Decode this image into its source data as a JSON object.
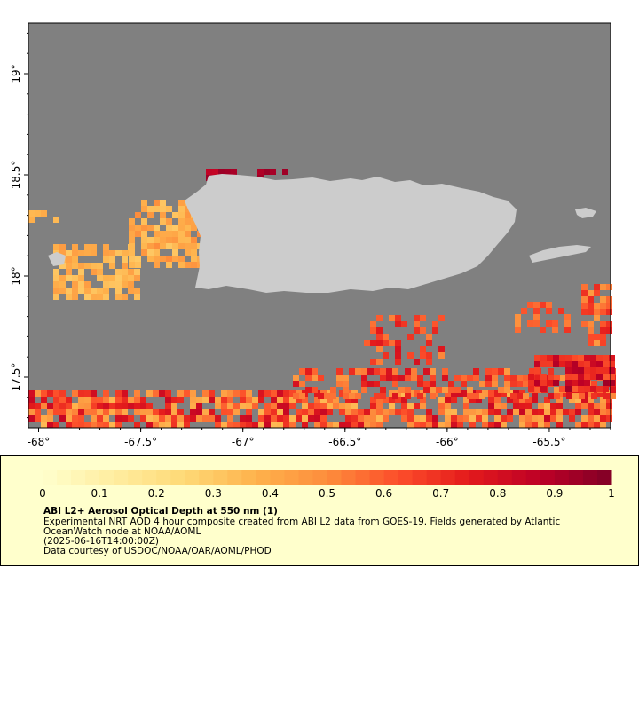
{
  "map": {
    "x_ticks": [
      "-68°",
      "-67.5°",
      "-67°",
      "-66.5°",
      "-66°",
      "-65.5°"
    ],
    "x_tick_values": [
      -68,
      -67.5,
      -67,
      -66.5,
      -66,
      -65.5
    ],
    "y_ticks": [
      "19°",
      "18.5°",
      "18°",
      "17.5°"
    ],
    "y_tick_values": [
      19,
      18.5,
      18,
      17.5
    ],
    "lon_range": [
      -68.05,
      -65.2
    ],
    "lat_range": [
      17.25,
      19.25
    ],
    "colors": {
      "no_data": "#808080",
      "land": "#cccccc",
      "frame": "#000000"
    }
  },
  "legend": {
    "colorbar_labels": [
      "0",
      "0.1",
      "0.2",
      "0.3",
      "0.4",
      "0.5",
      "0.6",
      "0.7",
      "0.8",
      "0.9",
      "1"
    ],
    "colorbar_values": [
      0,
      0.1,
      0.2,
      0.3,
      0.4,
      0.5,
      0.6,
      0.7,
      0.8,
      0.9,
      1
    ],
    "colormap": [
      "#ffffcc",
      "#ffeda0",
      "#fed976",
      "#feb24c",
      "#fd8d3c",
      "#fc4e2a",
      "#e31a1c",
      "#bd0026",
      "#800026"
    ],
    "title": "ABI L2+ Aerosol Optical Depth at 550 nm (1)",
    "desc_line_1": "Experimental NRT AOD 4 hour composite created from ABI L2 data from GOES-19. Fields generated by Atlantic",
    "desc_line_2": "OceanWatch node at NOAA/AOML",
    "desc_line_3": "(2025-06-16T14:00:00Z)",
    "credit": "Data courtesy of USDOC/NOAA/OAR/AOML/PHOD",
    "background": "#ffffcc"
  }
}
